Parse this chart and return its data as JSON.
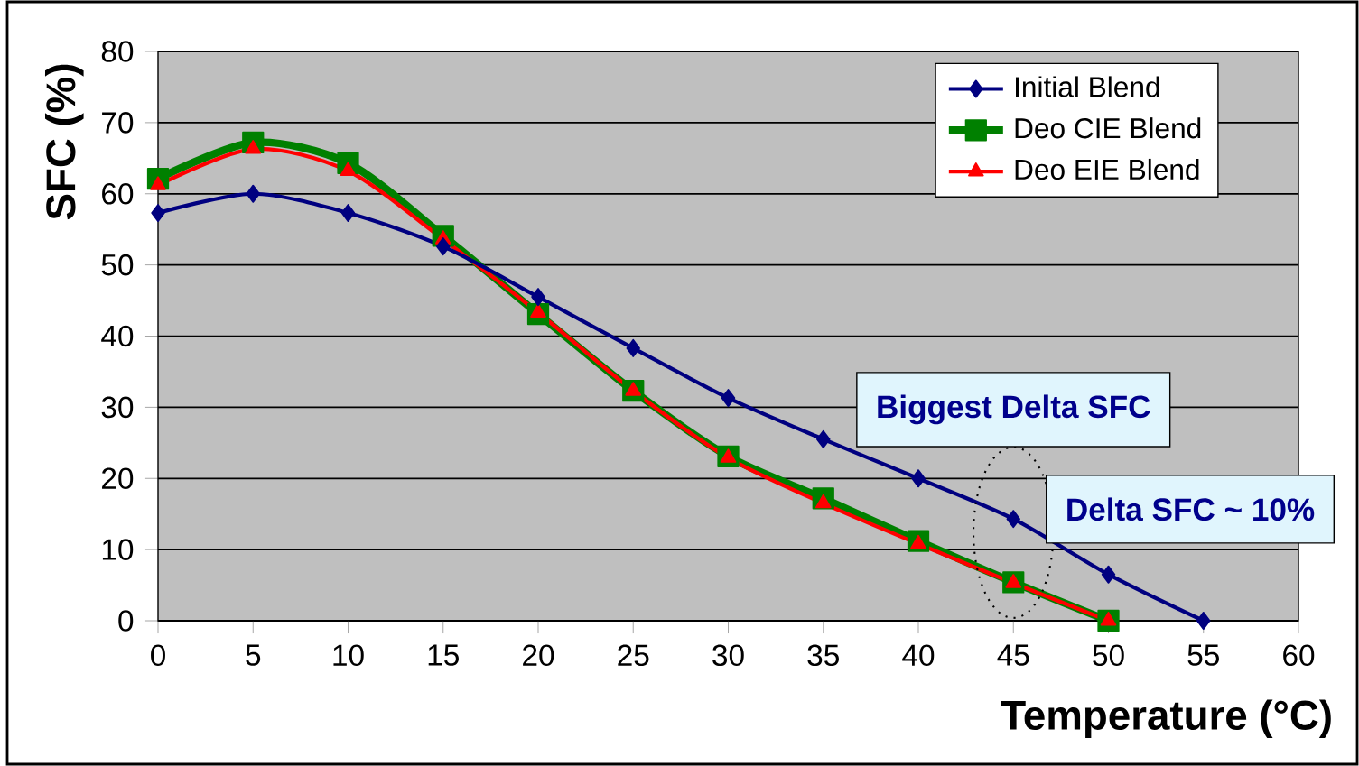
{
  "chart_data": {
    "type": "line",
    "xlabel": "Temperature (°C)",
    "ylabel": "SFC (%)",
    "x": [
      0,
      5,
      10,
      15,
      20,
      25,
      30,
      35,
      40,
      45,
      50,
      55
    ],
    "series": [
      {
        "name": "Initial Blend",
        "color": "#000080",
        "marker": "diamond",
        "values": [
          57.3,
          60.0,
          57.3,
          52.6,
          45.5,
          38.3,
          31.3,
          25.5,
          20.0,
          14.3,
          6.5,
          0
        ]
      },
      {
        "name": "Deo CIE Blend",
        "color": "#008000",
        "marker": "square",
        "values": [
          62.1,
          67.2,
          64.3,
          54.1,
          43.1,
          32.3,
          23.1,
          17.2,
          11.2,
          5.4,
          0,
          null
        ]
      },
      {
        "name": "Deo EIE Blend",
        "color": "#ff0000",
        "marker": "triangle",
        "values": [
          61.2,
          66.3,
          63.2,
          53.6,
          43.3,
          32.3,
          22.9,
          16.5,
          10.8,
          5.3,
          0,
          null
        ]
      }
    ],
    "xlim": [
      0,
      60
    ],
    "xticks": [
      0,
      5,
      10,
      15,
      20,
      25,
      30,
      35,
      40,
      45,
      50,
      55,
      60
    ],
    "ylim": [
      0,
      80
    ],
    "yticks": [
      0,
      10,
      20,
      30,
      40,
      50,
      60,
      70,
      80
    ],
    "grid": "y",
    "legend": "top right",
    "line_style": "solid",
    "annotations": [
      "Biggest Delta SFC",
      "Delta SFC ~ 10%"
    ]
  }
}
